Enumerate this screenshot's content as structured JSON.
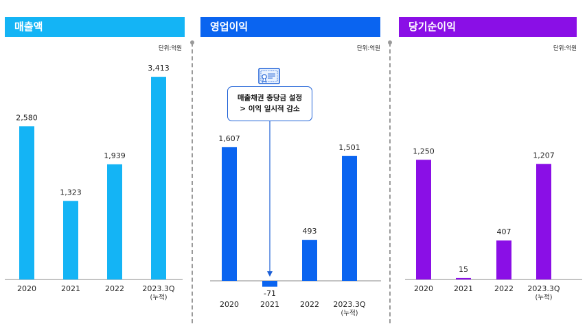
{
  "colors": {
    "revenue": "#14b4f5",
    "operating": "#0a64f0",
    "net": "#8a0fe6"
  },
  "chart_data": [
    {
      "type": "bar",
      "title": "매출액",
      "unit_label": "단위:억원",
      "categories": [
        "2020",
        "2021",
        "2022",
        "2023.3Q\n(누적)"
      ],
      "values": [
        2580,
        1323,
        1939,
        3413
      ],
      "value_labels": [
        "2,580",
        "1,323",
        "1,939",
        "3,413"
      ]
    },
    {
      "type": "bar",
      "title": "영업이익",
      "unit_label": "단위:억원",
      "categories": [
        "2020",
        "2021",
        "2022",
        "2023.3Q\n(누적)"
      ],
      "values": [
        1607,
        -71,
        493,
        1501
      ],
      "value_labels": [
        "1,607",
        "-71",
        "493",
        "1,501"
      ],
      "annotation": {
        "line1": "매출채권 충당금 설정",
        "line2": "> 이익 일시적 감소",
        "icon": "certificate-icon"
      }
    },
    {
      "type": "bar",
      "title": "당기순이익",
      "unit_label": "단위:억원",
      "categories": [
        "2020",
        "2021",
        "2022",
        "2023.3Q\n(누적)"
      ],
      "values": [
        1250,
        15,
        407,
        1207
      ],
      "value_labels": [
        "1,250",
        "15",
        "407",
        "1,207"
      ]
    }
  ]
}
